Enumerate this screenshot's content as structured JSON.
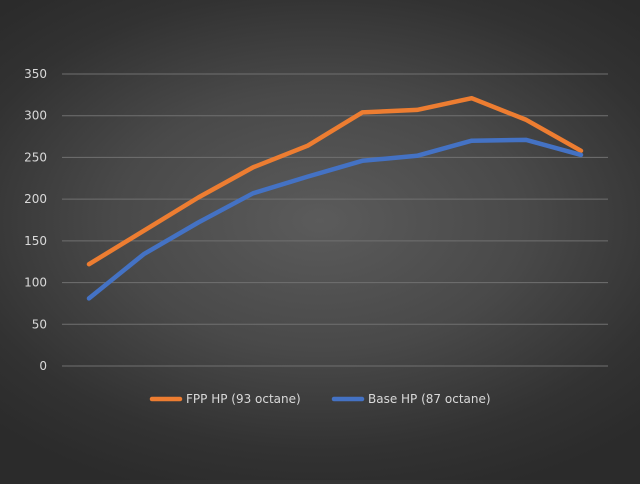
{
  "chart_data": {
    "type": "line",
    "title": "",
    "xlabel": "",
    "ylabel": "",
    "ylim": [
      0,
      350
    ],
    "yticks": [
      0,
      50,
      100,
      150,
      200,
      250,
      300,
      350
    ],
    "grid": true,
    "legend_position": "bottom",
    "series": [
      {
        "name": "FPP HP (93 octane)",
        "color": "#ed7d31",
        "values": [
          122,
          162,
          202,
          238,
          264,
          304,
          307,
          321,
          295,
          258
        ]
      },
      {
        "name": "Base HP (87 octane)",
        "color": "#4472c4",
        "values": [
          81,
          134,
          172,
          207,
          227,
          246,
          252,
          270,
          271,
          253
        ]
      }
    ],
    "colors": {
      "grid": "#707070",
      "text": "#d9d9d9"
    }
  }
}
